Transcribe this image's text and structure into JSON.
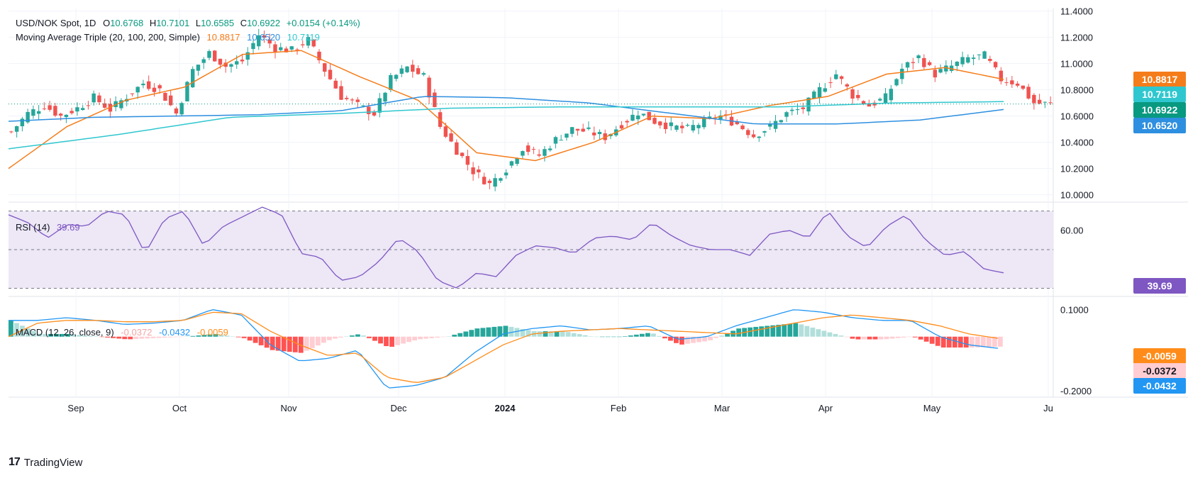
{
  "legend": {
    "symbol": "USD/NOK Spot, 1D",
    "open_label": "O",
    "open": "10.6768",
    "high_label": "H",
    "high": "10.7101",
    "low_label": "L",
    "low": "10.6585",
    "close_label": "C",
    "close": "10.6922",
    "change": "+0.0154 (+0.14%)",
    "ma_title": "Moving Average Triple (20, 100, 200, Simple)",
    "ma20": "10.8817",
    "ma100": "10.6520",
    "ma200": "10.7119",
    "rsi_title": "RSI (14)",
    "rsi_value": "39.69",
    "macd_title": "MACD (12, 26, close, 9)",
    "macd_hist": "-0.0372",
    "macd_line": "-0.0432",
    "macd_signal": "-0.0059"
  },
  "price_tags": {
    "ma20": "10.8817",
    "ma200": "10.7119",
    "close": "10.6922",
    "ma100": "10.6520",
    "rsi": "39.69",
    "macd_signal": "-0.0059",
    "macd_hist": "-0.0372",
    "macd_line": "-0.0432"
  },
  "colors": {
    "up": "#26a69a",
    "down": "#ef5350",
    "ma20": "#f57c1a",
    "ma100": "#2e8fe0",
    "ma200": "#2fc7cf",
    "rsi": "#7e57c2",
    "rsi_band": "#ede7f6",
    "macd": "#2196f3",
    "signal": "#ff8c1a",
    "hist_up_strong": "#26a69a",
    "hist_up_weak": "#b2dfdb",
    "hist_down_strong": "#ff5252",
    "hist_down_weak": "#ffcdd2",
    "grid": "#f0f3fa"
  },
  "brand": {
    "name": "TradingView",
    "logo": "17"
  },
  "chart_data": {
    "type": "candlestick",
    "x_labels": [
      "Sep",
      "Oct",
      "Nov",
      "Dec",
      "2024",
      "Feb",
      "Mar",
      "Apr",
      "May",
      "Ju"
    ],
    "price_axis": {
      "ticks": [
        "11.4000",
        "11.2000",
        "11.0000",
        "10.8000",
        "10.6000",
        "10.4000",
        "10.2000",
        "10.0000"
      ],
      "range": [
        9.96,
        11.42
      ]
    },
    "price_anchors": [
      10.48,
      10.62,
      10.68,
      10.6,
      10.66,
      10.74,
      10.65,
      10.75,
      10.85,
      10.8,
      10.62,
      10.95,
      11.08,
      10.98,
      11.02,
      11.22,
      11.12,
      11.1,
      11.18,
      10.95,
      10.75,
      10.68,
      10.62,
      10.88,
      10.97,
      10.9,
      10.52,
      10.34,
      10.18,
      10.08,
      10.2,
      10.36,
      10.3,
      10.42,
      10.5,
      10.48,
      10.44,
      10.54,
      10.63,
      10.56,
      10.52,
      10.5,
      10.56,
      10.6,
      10.54,
      10.45,
      10.52,
      10.62,
      10.66,
      10.8,
      10.92,
      10.76,
      10.68,
      10.74,
      10.96,
      11.05,
      10.92,
      10.98,
      11.04,
      11.06,
      10.88,
      10.85,
      10.7,
      10.69
    ],
    "ma_series": [
      {
        "name": "MA20",
        "period": 20,
        "anchors": [
          10.2,
          10.52,
          10.72,
          10.82,
          11.07,
          11.1,
          10.9,
          10.72,
          10.32,
          10.26,
          10.4,
          10.6,
          10.58,
          10.68,
          10.75,
          10.92,
          10.97,
          10.88
        ]
      },
      {
        "name": "MA100",
        "period": 100,
        "anchors": [
          10.56,
          10.59,
          10.6,
          10.61,
          10.64,
          10.75,
          10.74,
          10.7,
          10.62,
          10.54,
          10.54,
          10.57,
          10.65
        ]
      },
      {
        "name": "MA200",
        "period": 200,
        "anchors": [
          10.35,
          10.46,
          10.59,
          10.62,
          10.66,
          10.67,
          10.67,
          10.67,
          10.7,
          10.71
        ]
      }
    ],
    "rsi": {
      "period": 14,
      "levels": [
        70,
        50,
        30
      ],
      "ticks": [
        "60.00"
      ],
      "range": [
        28,
        72
      ],
      "anchors": [
        68,
        64,
        56,
        63,
        62,
        70,
        68,
        48,
        66,
        70,
        52,
        62,
        67,
        72,
        68,
        48,
        46,
        34,
        36,
        44,
        56,
        49,
        34,
        30,
        38,
        36,
        47,
        52,
        51,
        48,
        56,
        57,
        55,
        64,
        57,
        52,
        50,
        50,
        47,
        58,
        60,
        56,
        70,
        57,
        51,
        62,
        68,
        55,
        47,
        49,
        40,
        38
      ]
    },
    "macd": {
      "fast": 12,
      "slow": 26,
      "signal": 9,
      "ticks": [
        "0.1000",
        "-0.2000"
      ],
      "range": [
        -0.21,
        0.13
      ],
      "line_anchors": [
        0.06,
        0.06,
        0.07,
        0.06,
        0.045,
        0.05,
        0.06,
        0.1,
        0.08,
        -0.03,
        -0.09,
        -0.08,
        -0.05,
        -0.19,
        -0.18,
        -0.15,
        -0.06,
        0.01,
        0.03,
        0.04,
        0.025,
        0.03,
        0.04,
        -0.01,
        0.0,
        0.04,
        0.07,
        0.1,
        0.09,
        0.07,
        0.06,
        0.06,
        0.0,
        -0.03,
        -0.043
      ],
      "signal_anchors": [
        0.0,
        0.05,
        0.06,
        0.06,
        0.055,
        0.055,
        0.06,
        0.09,
        0.085,
        0.02,
        -0.03,
        -0.07,
        -0.06,
        -0.15,
        -0.17,
        -0.15,
        -0.09,
        -0.03,
        0.01,
        0.02,
        0.025,
        0.03,
        0.025,
        0.02,
        0.015,
        0.01,
        0.03,
        0.05,
        0.07,
        0.08,
        0.07,
        0.06,
        0.04,
        0.01,
        -0.006
      ]
    }
  }
}
